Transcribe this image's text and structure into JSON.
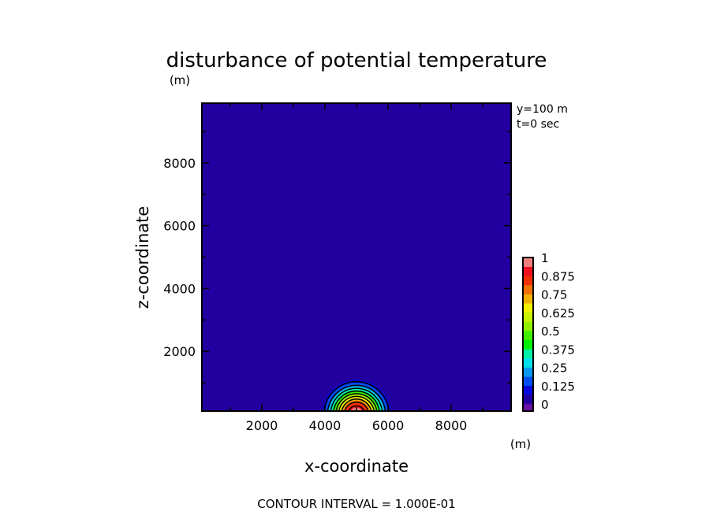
{
  "chart_data": {
    "type": "heatmap",
    "title": "disturbance of potential temperature",
    "title_unit": "(m)",
    "xlabel": "x-coordinate",
    "ylabel": "z-coordinate",
    "x_unit": "(m)",
    "xlim": [
      100,
      9900
    ],
    "ylim": [
      100,
      9900
    ],
    "xticks": [
      2000,
      4000,
      6000,
      8000
    ],
    "yticks": [
      2000,
      4000,
      6000,
      8000
    ],
    "annotations": [
      "y=100 m",
      "t=0 sec"
    ],
    "footer": "CONTOUR INTERVAL = 1.000E-01",
    "contour_interval": 0.1,
    "field": {
      "shape": "cos2-bubble",
      "center_x": 5000,
      "center_z": 0,
      "radius": 1300,
      "amplitude": 1
    },
    "colorbar": {
      "tick_labels": [
        "1",
        "0.875",
        "0.75",
        "0.625",
        "0.5",
        "0.375",
        "0.25",
        "0.125",
        "0"
      ],
      "tick_values": [
        1,
        0.875,
        0.75,
        0.625,
        0.5,
        0.375,
        0.25,
        0.125,
        0
      ],
      "below_color": "#6a10a0",
      "colors": [
        "#2200a0",
        "#0808d8",
        "#0050f0",
        "#0898f0",
        "#00e0e8",
        "#00f0a8",
        "#00f000",
        "#40f000",
        "#90f000",
        "#c8f000",
        "#f0f000",
        "#f0b000",
        "#f07000",
        "#f03000",
        "#f01020",
        "#f08080"
      ]
    }
  }
}
